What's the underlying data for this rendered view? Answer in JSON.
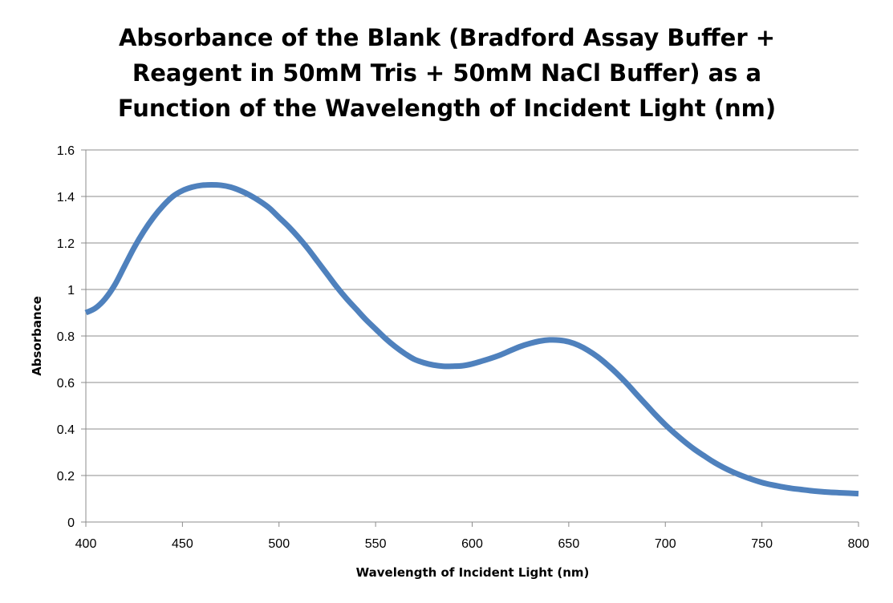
{
  "chart_data": {
    "type": "line",
    "title_lines": [
      "Absorbance of the Blank (Bradford Assay Buffer +",
      "Reagent in 50mM Tris + 50mM NaCl Buffer) as a",
      "Function of the Wavelength of Incident Light (nm)"
    ],
    "xlabel": "Wavelength of Incident Light (nm)",
    "ylabel": "Absorbance",
    "xlim": [
      400,
      800
    ],
    "ylim": [
      0,
      1.6
    ],
    "x_ticks": [
      "400",
      "450",
      "500",
      "550",
      "600",
      "650",
      "700",
      "750",
      "800"
    ],
    "y_ticks": [
      "0",
      "0.2",
      "0.4",
      "0.6",
      "0.8",
      "1",
      "1.2",
      "1.4",
      "1.6"
    ],
    "grid": "horizontal",
    "legend": "none",
    "series": [
      {
        "color": "#4F81BD",
        "x": [
          400,
          405,
          410,
          415,
          420,
          425,
          430,
          435,
          440,
          445,
          450,
          455,
          460,
          465,
          470,
          475,
          480,
          485,
          490,
          495,
          500,
          505,
          510,
          515,
          520,
          525,
          530,
          535,
          540,
          545,
          550,
          555,
          560,
          565,
          570,
          575,
          580,
          585,
          590,
          595,
          600,
          605,
          610,
          615,
          620,
          625,
          630,
          635,
          640,
          645,
          650,
          655,
          660,
          665,
          670,
          675,
          680,
          685,
          690,
          695,
          700,
          705,
          710,
          715,
          720,
          725,
          730,
          735,
          740,
          745,
          750,
          755,
          760,
          765,
          770,
          775,
          780,
          785,
          790,
          795,
          800
        ],
        "y": [
          0.9,
          0.92,
          0.96,
          1.02,
          1.1,
          1.18,
          1.25,
          1.31,
          1.36,
          1.4,
          1.425,
          1.44,
          1.448,
          1.45,
          1.448,
          1.44,
          1.425,
          1.405,
          1.38,
          1.35,
          1.31,
          1.27,
          1.225,
          1.175,
          1.12,
          1.065,
          1.01,
          0.96,
          0.915,
          0.87,
          0.83,
          0.79,
          0.755,
          0.725,
          0.7,
          0.685,
          0.675,
          0.67,
          0.67,
          0.672,
          0.68,
          0.692,
          0.705,
          0.72,
          0.738,
          0.755,
          0.768,
          0.778,
          0.783,
          0.782,
          0.775,
          0.76,
          0.738,
          0.71,
          0.676,
          0.638,
          0.596,
          0.55,
          0.505,
          0.46,
          0.418,
          0.38,
          0.345,
          0.313,
          0.285,
          0.258,
          0.235,
          0.215,
          0.198,
          0.183,
          0.17,
          0.16,
          0.152,
          0.145,
          0.14,
          0.135,
          0.131,
          0.128,
          0.126,
          0.124,
          0.122
        ]
      }
    ]
  }
}
